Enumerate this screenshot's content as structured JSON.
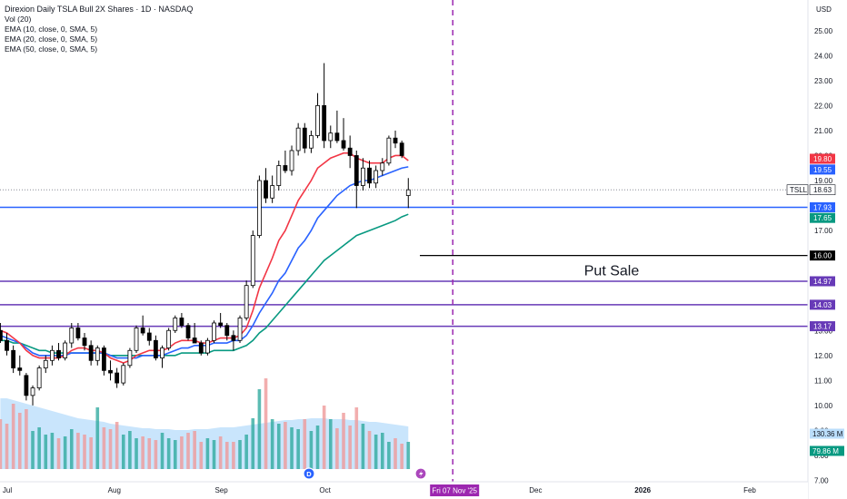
{
  "header": {
    "title": "Direxion Daily TSLA Bull 2X Shares · 1D · NASDAQ",
    "indicators": [
      "Vol (20)",
      "EMA (10, close, 0, SMA, 5)",
      "EMA (20, close, 0, SMA, 5)",
      "EMA (50, close, 0, SMA, 5)"
    ]
  },
  "chart_data": {
    "type": "candlestick",
    "currency_label": "USD",
    "y_ticks": [
      "25.00",
      "24.00",
      "23.00",
      "22.00",
      "21.00",
      "20.00",
      "19.00",
      "18.00",
      "17.00",
      "16.00",
      "15.00",
      "14.00",
      "13.00",
      "12.00",
      "11.00",
      "10.00",
      "9.00",
      "8.00",
      "7.00"
    ],
    "ylim": [
      6.8,
      25.5
    ],
    "x_ticks": [
      {
        "label": "Jul",
        "day": 0
      },
      {
        "label": "Aug",
        "day": 31
      },
      {
        "label": "Sep",
        "day": 62
      },
      {
        "label": "Oct",
        "day": 92
      },
      {
        "label": "Dec",
        "day": 153
      },
      {
        "label": "2026",
        "day": 184
      },
      {
        "label": "Feb",
        "day": 215
      }
    ],
    "date_marker": {
      "label": "Fri 07 Nov '25",
      "day": 129
    },
    "candles": [
      {
        "o": 13.0,
        "h": 13.3,
        "l": 12.5,
        "c": 12.6
      },
      {
        "o": 12.6,
        "h": 12.9,
        "l": 12.0,
        "c": 12.2
      },
      {
        "o": 12.2,
        "h": 12.4,
        "l": 11.3,
        "c": 11.5
      },
      {
        "o": 11.5,
        "h": 12.0,
        "l": 11.2,
        "c": 11.4
      },
      {
        "o": 11.2,
        "h": 11.3,
        "l": 10.2,
        "c": 10.4
      },
      {
        "o": 10.4,
        "h": 10.8,
        "l": 10.0,
        "c": 10.7
      },
      {
        "o": 10.7,
        "h": 11.6,
        "l": 10.6,
        "c": 11.5
      },
      {
        "o": 11.5,
        "h": 12.0,
        "l": 11.3,
        "c": 11.8
      },
      {
        "o": 11.8,
        "h": 12.4,
        "l": 11.6,
        "c": 12.2
      },
      {
        "o": 12.2,
        "h": 12.5,
        "l": 11.8,
        "c": 11.9
      },
      {
        "o": 11.9,
        "h": 12.6,
        "l": 11.8,
        "c": 12.5
      },
      {
        "o": 12.5,
        "h": 13.3,
        "l": 12.3,
        "c": 13.1
      },
      {
        "o": 13.1,
        "h": 13.3,
        "l": 12.6,
        "c": 12.7
      },
      {
        "o": 12.7,
        "h": 12.9,
        "l": 12.2,
        "c": 12.4
      },
      {
        "o": 12.4,
        "h": 12.6,
        "l": 11.6,
        "c": 11.8
      },
      {
        "o": 11.8,
        "h": 12.4,
        "l": 11.6,
        "c": 12.3
      },
      {
        "o": 12.3,
        "h": 12.4,
        "l": 11.2,
        "c": 11.4
      },
      {
        "o": 11.4,
        "h": 11.8,
        "l": 11.0,
        "c": 11.3
      },
      {
        "o": 11.3,
        "h": 11.5,
        "l": 10.7,
        "c": 10.9
      },
      {
        "o": 10.9,
        "h": 11.7,
        "l": 10.8,
        "c": 11.6
      },
      {
        "o": 11.6,
        "h": 12.3,
        "l": 11.5,
        "c": 12.2
      },
      {
        "o": 12.2,
        "h": 13.2,
        "l": 12.1,
        "c": 13.1
      },
      {
        "o": 13.1,
        "h": 13.6,
        "l": 12.8,
        "c": 12.9
      },
      {
        "o": 12.9,
        "h": 13.1,
        "l": 12.4,
        "c": 12.6
      },
      {
        "o": 12.6,
        "h": 12.8,
        "l": 11.8,
        "c": 11.9
      },
      {
        "o": 11.9,
        "h": 12.4,
        "l": 11.5,
        "c": 12.3
      },
      {
        "o": 12.3,
        "h": 13.1,
        "l": 12.2,
        "c": 13.0
      },
      {
        "o": 13.0,
        "h": 13.6,
        "l": 12.9,
        "c": 13.5
      },
      {
        "o": 13.5,
        "h": 13.7,
        "l": 13.1,
        "c": 13.2
      },
      {
        "o": 13.2,
        "h": 13.3,
        "l": 12.6,
        "c": 12.7
      },
      {
        "o": 12.7,
        "h": 13.3,
        "l": 12.5,
        "c": 12.5
      },
      {
        "o": 12.5,
        "h": 12.6,
        "l": 12.0,
        "c": 12.1
      },
      {
        "o": 12.1,
        "h": 12.7,
        "l": 12.0,
        "c": 12.6
      },
      {
        "o": 12.6,
        "h": 13.4,
        "l": 12.5,
        "c": 13.3
      },
      {
        "o": 13.3,
        "h": 13.7,
        "l": 13.1,
        "c": 13.2
      },
      {
        "o": 13.2,
        "h": 13.3,
        "l": 12.6,
        "c": 12.8
      },
      {
        "o": 12.8,
        "h": 13.0,
        "l": 12.2,
        "c": 12.6
      },
      {
        "o": 12.6,
        "h": 13.6,
        "l": 12.5,
        "c": 13.5
      },
      {
        "o": 13.5,
        "h": 15.0,
        "l": 13.4,
        "c": 14.8
      },
      {
        "o": 14.8,
        "h": 17.0,
        "l": 14.7,
        "c": 16.8
      },
      {
        "o": 16.8,
        "h": 19.2,
        "l": 16.7,
        "c": 19.0
      },
      {
        "o": 19.0,
        "h": 19.5,
        "l": 18.1,
        "c": 18.3
      },
      {
        "o": 18.3,
        "h": 19.2,
        "l": 18.1,
        "c": 18.8
      },
      {
        "o": 18.8,
        "h": 19.8,
        "l": 18.6,
        "c": 19.6
      },
      {
        "o": 19.6,
        "h": 20.2,
        "l": 19.3,
        "c": 19.4
      },
      {
        "o": 19.4,
        "h": 20.4,
        "l": 19.2,
        "c": 20.2
      },
      {
        "o": 20.2,
        "h": 21.3,
        "l": 20.0,
        "c": 21.1
      },
      {
        "o": 21.1,
        "h": 21.3,
        "l": 20.1,
        "c": 20.3
      },
      {
        "o": 20.3,
        "h": 21.0,
        "l": 20.1,
        "c": 20.8
      },
      {
        "o": 20.8,
        "h": 22.5,
        "l": 20.7,
        "c": 22.0
      },
      {
        "o": 22.0,
        "h": 23.7,
        "l": 20.3,
        "c": 20.6
      },
      {
        "o": 20.6,
        "h": 21.2,
        "l": 20.3,
        "c": 20.9
      },
      {
        "o": 20.9,
        "h": 21.8,
        "l": 20.5,
        "c": 20.6
      },
      {
        "o": 20.6,
        "h": 21.5,
        "l": 20.2,
        "c": 20.3
      },
      {
        "o": 20.3,
        "h": 20.8,
        "l": 19.5,
        "c": 20.0
      },
      {
        "o": 20.0,
        "h": 20.2,
        "l": 17.9,
        "c": 18.8
      },
      {
        "o": 18.8,
        "h": 19.9,
        "l": 18.6,
        "c": 19.5
      },
      {
        "o": 19.5,
        "h": 19.8,
        "l": 18.7,
        "c": 18.9
      },
      {
        "o": 18.9,
        "h": 19.6,
        "l": 18.7,
        "c": 19.4
      },
      {
        "o": 19.4,
        "h": 19.9,
        "l": 19.2,
        "c": 19.7
      },
      {
        "o": 19.7,
        "h": 20.8,
        "l": 19.6,
        "c": 20.7
      },
      {
        "o": 20.7,
        "h": 21.0,
        "l": 20.3,
        "c": 20.5
      },
      {
        "o": 20.5,
        "h": 20.6,
        "l": 19.9,
        "c": 20.0
      },
      {
        "o": 18.4,
        "h": 19.1,
        "l": 17.9,
        "c": 18.63
      }
    ],
    "ema10": [
      13.0,
      12.9,
      12.7,
      12.5,
      12.2,
      12.0,
      11.9,
      11.9,
      11.9,
      11.9,
      12.0,
      12.2,
      12.3,
      12.3,
      12.2,
      12.2,
      12.1,
      11.9,
      11.8,
      11.7,
      11.8,
      12.0,
      12.1,
      12.2,
      12.2,
      12.2,
      12.3,
      12.5,
      12.6,
      12.6,
      12.6,
      12.5,
      12.5,
      12.6,
      12.7,
      12.7,
      12.7,
      12.8,
      13.1,
      13.8,
      14.7,
      15.3,
      15.9,
      16.6,
      17.0,
      17.6,
      18.2,
      18.6,
      19.0,
      19.5,
      19.7,
      19.9,
      20.0,
      20.1,
      20.1,
      19.9,
      19.8,
      19.7,
      19.7,
      19.7,
      19.9,
      20.0,
      20.0,
      19.8
    ],
    "ema20": [
      12.8,
      12.7,
      12.6,
      12.5,
      12.3,
      12.1,
      12.0,
      12.0,
      12.0,
      12.0,
      12.0,
      12.1,
      12.1,
      12.1,
      12.1,
      12.1,
      12.1,
      12.0,
      11.9,
      11.9,
      11.9,
      11.9,
      12.0,
      12.0,
      12.0,
      12.0,
      12.1,
      12.2,
      12.3,
      12.3,
      12.4,
      12.4,
      12.4,
      12.5,
      12.5,
      12.5,
      12.6,
      12.6,
      12.8,
      13.2,
      13.7,
      14.1,
      14.5,
      15.0,
      15.3,
      15.8,
      16.3,
      16.6,
      17.0,
      17.5,
      17.8,
      18.1,
      18.4,
      18.6,
      18.8,
      18.9,
      19.0,
      19.0,
      19.1,
      19.2,
      19.3,
      19.4,
      19.5,
      19.55
    ],
    "ema50": [
      12.6,
      12.6,
      12.5,
      12.5,
      12.4,
      12.3,
      12.2,
      12.2,
      12.1,
      12.1,
      12.1,
      12.1,
      12.1,
      12.1,
      12.1,
      12.1,
      12.1,
      12.0,
      12.0,
      12.0,
      12.0,
      12.0,
      12.0,
      12.0,
      12.0,
      12.0,
      12.0,
      12.0,
      12.1,
      12.1,
      12.1,
      12.1,
      12.1,
      12.2,
      12.2,
      12.2,
      12.2,
      12.3,
      12.4,
      12.6,
      12.9,
      13.1,
      13.4,
      13.7,
      14.0,
      14.3,
      14.6,
      14.9,
      15.2,
      15.5,
      15.8,
      16.0,
      16.2,
      16.4,
      16.6,
      16.8,
      16.9,
      17.0,
      17.1,
      17.2,
      17.3,
      17.4,
      17.55,
      17.65
    ],
    "volume": [
      0.55,
      0.5,
      0.72,
      0.62,
      0.66,
      0.42,
      0.46,
      0.38,
      0.4,
      0.34,
      0.36,
      0.44,
      0.4,
      0.38,
      0.35,
      0.68,
      0.46,
      0.44,
      0.52,
      0.38,
      0.42,
      0.34,
      0.36,
      0.34,
      0.32,
      0.4,
      0.34,
      0.32,
      0.36,
      0.4,
      0.42,
      0.3,
      0.34,
      0.32,
      0.36,
      0.3,
      0.3,
      0.32,
      0.38,
      0.56,
      0.88,
      1.0,
      0.55,
      0.5,
      0.52,
      0.46,
      0.44,
      0.55,
      0.42,
      0.48,
      0.7,
      0.55,
      0.45,
      0.62,
      0.48,
      0.68,
      0.5,
      0.42,
      0.38,
      0.4,
      0.3,
      0.34,
      0.28,
      0.3
    ],
    "volume_ma": [
      0.78,
      0.78,
      0.76,
      0.74,
      0.72,
      0.7,
      0.68,
      0.66,
      0.64,
      0.62,
      0.6,
      0.58,
      0.56,
      0.55,
      0.54,
      0.53,
      0.52,
      0.5,
      0.49,
      0.48,
      0.47,
      0.46,
      0.45,
      0.45,
      0.44,
      0.44,
      0.44,
      0.43,
      0.43,
      0.43,
      0.44,
      0.44,
      0.44,
      0.45,
      0.46,
      0.46,
      0.46,
      0.47,
      0.48,
      0.49,
      0.5,
      0.51,
      0.52,
      0.53,
      0.54,
      0.54,
      0.55,
      0.55,
      0.56,
      0.56,
      0.56,
      0.55,
      0.55,
      0.55,
      0.54,
      0.54,
      0.53,
      0.52,
      0.52,
      0.51,
      0.5,
      0.49,
      0.48,
      0.47
    ],
    "levels": [
      {
        "price": 17.93,
        "label": "17.93",
        "color": "#2962ff",
        "style": "solid"
      },
      {
        "price": 16.0,
        "label": "16.00",
        "color": "#000000",
        "style": "solid",
        "partial": true
      },
      {
        "price": 14.97,
        "label": "14.97",
        "color": "#673ab7",
        "style": "solid"
      },
      {
        "price": 14.03,
        "label": "14.03",
        "color": "#673ab7",
        "style": "solid"
      },
      {
        "price": 13.17,
        "label": "13.17",
        "color": "#673ab7",
        "style": "solid"
      }
    ],
    "annotation": "Put Sale",
    "current_price": {
      "price": 18.63,
      "symbol": "TSLL",
      "label": "18.63"
    },
    "ema_tags": [
      {
        "price": 19.8,
        "label": "19.80",
        "color": "#f23645"
      },
      {
        "price": 19.55,
        "label": "19.55",
        "color": "#2962ff"
      },
      {
        "price": 17.65,
        "label": "17.65",
        "color": "#089981"
      }
    ],
    "volume_tags": [
      {
        "label": "130.36 M",
        "color": "#bbdefb",
        "text_color": "#131722"
      },
      {
        "label": "79.86 M",
        "color": "#089981",
        "text_color": "#ffffff"
      }
    ],
    "colors": {
      "up": "#ffffff",
      "down": "#000000",
      "ema10": "#f23645",
      "ema20": "#2962ff",
      "ema50": "#089981",
      "vol_up": "#26a69a",
      "vol_down": "#ef9a9a",
      "vol_ma_fill": "#bbdefb",
      "marker": "#9c27b0"
    }
  }
}
